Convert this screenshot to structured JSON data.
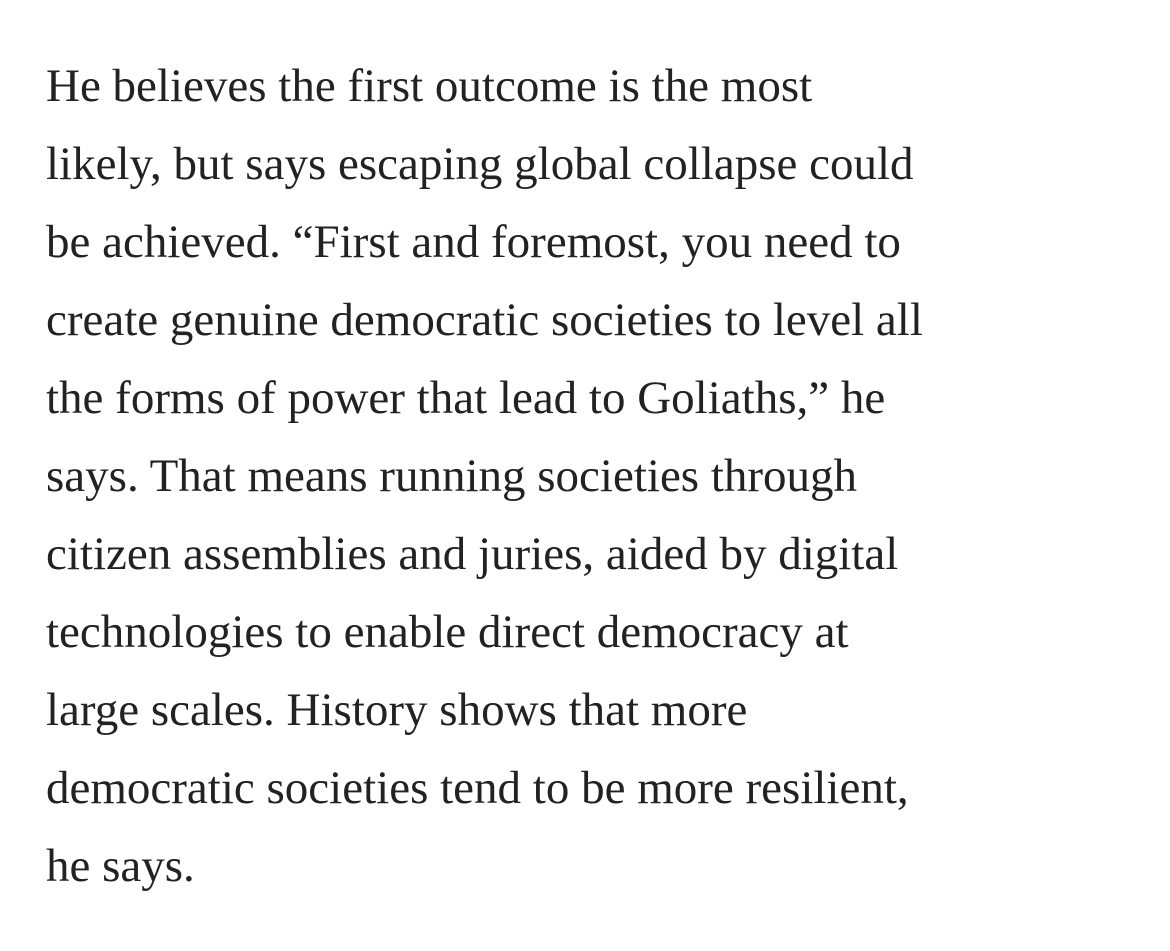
{
  "article": {
    "paragraph": {
      "lines": [
        "He believes the first outcome is the most",
        "likely, but says escaping global collapse could",
        "be achieved. “First and foremost, you need to",
        "create genuine democratic societies to level all",
        "the forms of power that lead to Goliaths,” he",
        "says. That means running societies through",
        "citizen assemblies and juries, aided by digital",
        "technologies to enable direct democracy at",
        "large scales. History shows that more",
        "democratic societies tend to be more resilient,",
        "he says."
      ]
    }
  }
}
